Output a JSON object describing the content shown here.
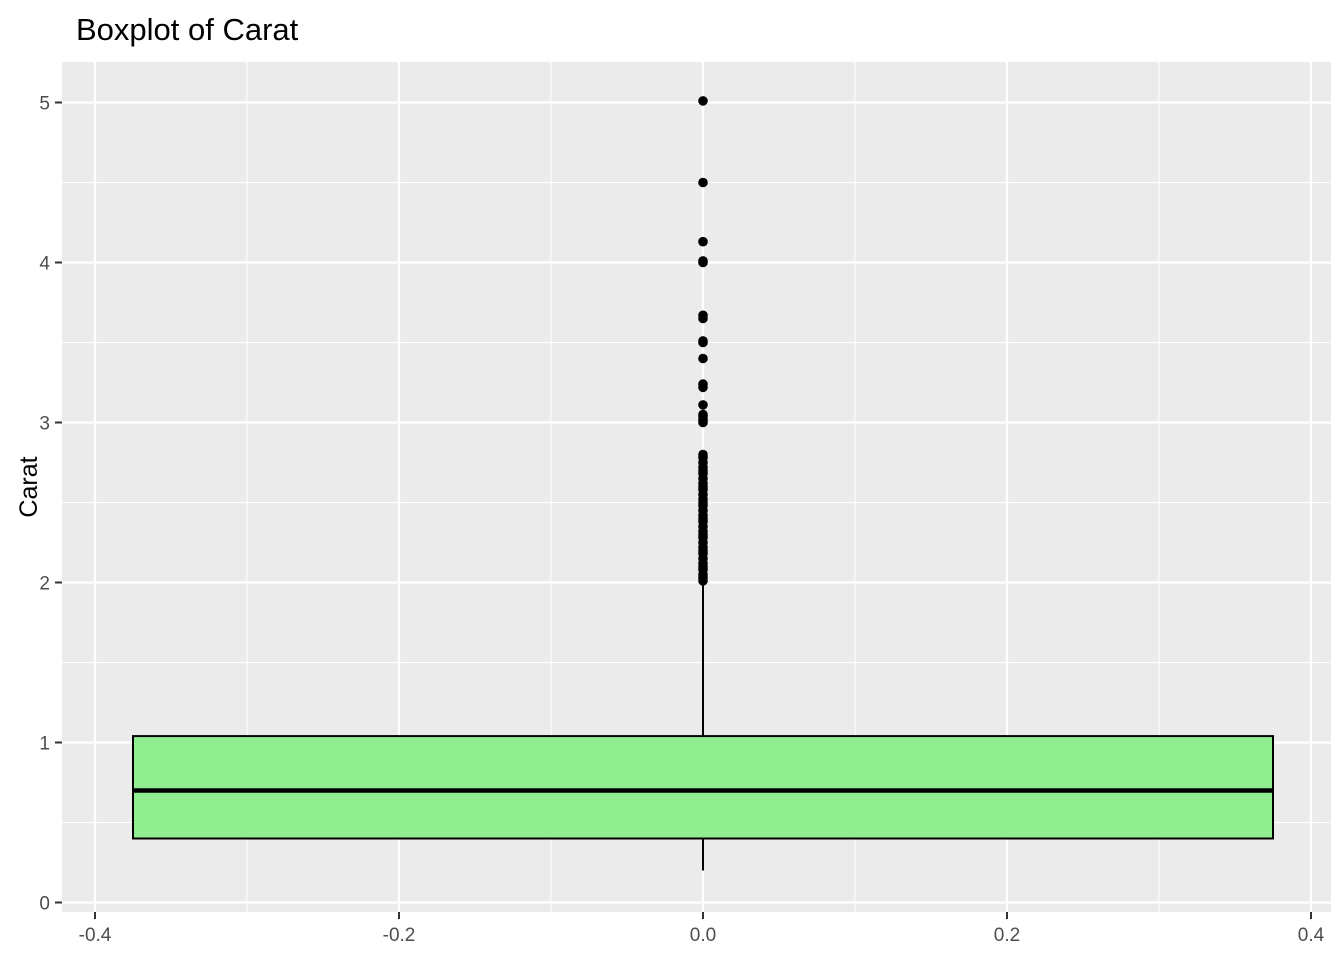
{
  "chart_data": {
    "type": "boxplot",
    "title": "Boxplot of Carat",
    "xlabel": "",
    "ylabel": "Carat",
    "xlim": [
      -0.4,
      0.4
    ],
    "ylim": [
      0,
      5
    ],
    "x_ticks": [
      -0.4,
      -0.2,
      0.0,
      0.2,
      0.4
    ],
    "x_tick_labels": [
      "-0.4",
      "-0.2",
      "0.0",
      "0.2",
      "0.4"
    ],
    "y_ticks": [
      0,
      1,
      2,
      3,
      4,
      5
    ],
    "y_tick_labels": [
      "0",
      "1",
      "2",
      "3",
      "4",
      "5"
    ],
    "grid": true,
    "box": {
      "x_center": 0.0,
      "x_left": -0.375,
      "x_right": 0.375,
      "lower_whisker": 0.2,
      "q1": 0.4,
      "median": 0.7,
      "q3": 1.04,
      "upper_whisker": 2.0,
      "fill_color": "#90EE90",
      "outline_color": "#000000"
    },
    "outliers": [
      2.01,
      2.03,
      2.05,
      2.08,
      2.1,
      2.12,
      2.15,
      2.18,
      2.2,
      2.22,
      2.25,
      2.28,
      2.3,
      2.32,
      2.35,
      2.38,
      2.4,
      2.42,
      2.45,
      2.48,
      2.5,
      2.52,
      2.55,
      2.58,
      2.6,
      2.62,
      2.65,
      2.68,
      2.7,
      2.72,
      2.75,
      2.78,
      2.8,
      3.0,
      3.01,
      3.02,
      3.04,
      3.05,
      3.11,
      3.22,
      3.24,
      3.4,
      3.5,
      3.51,
      3.65,
      3.67,
      4.0,
      4.01,
      4.13,
      4.5,
      5.01
    ],
    "panel_background": "#EBEBEB",
    "grid_color": "#FFFFFF"
  }
}
